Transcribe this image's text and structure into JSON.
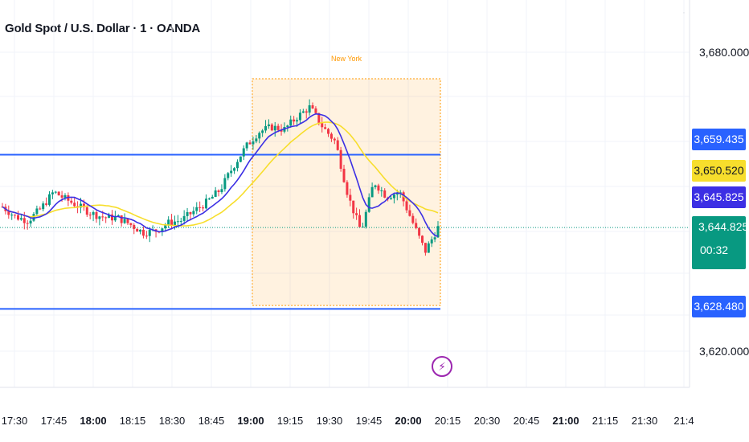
{
  "header": {
    "title": "Gold Spot / U.S. Dollar · 1 · OANDA"
  },
  "chart_data": {
    "type": "candlestick",
    "title": "Gold Spot / U.S. Dollar · 1 · OANDA",
    "ylim": [
      3612.5,
      3686.0
    ],
    "y_ticks": [
      "3,680.000",
      "3,620.000"
    ],
    "x_ticks": [
      "17:30",
      "17:45",
      "18:00",
      "18:15",
      "18:30",
      "18:45",
      "19:00",
      "19:15",
      "19:30",
      "19:45",
      "20:00",
      "20:15",
      "20:30",
      "20:45",
      "21:00",
      "21:15",
      "21:30",
      "21:4"
    ],
    "x_ticks_bold": [
      "18:00",
      "19:00",
      "20:00",
      "21:00"
    ],
    "session_label": "New York",
    "horizontal_lines": [
      {
        "value": 3659.435,
        "color": "#2962ff"
      },
      {
        "value": 3628.48,
        "color": "#2962ff"
      }
    ],
    "price_labels": {
      "upper_line": "3,659.435",
      "ema": "3,650.520",
      "sma": "3,645.825",
      "current": "3,644.825",
      "countdown": "00:32",
      "lower_line": "3,628.480"
    },
    "colors": {
      "up": "#089981",
      "down": "#f23645",
      "ema": "#f7de2c",
      "sma": "#3c2fe4",
      "session": "#ff9800"
    },
    "close_path": [
      3649.0,
      3647.0,
      3646.2,
      3648.6,
      3652.0,
      3650.4,
      3649.0,
      3647.6,
      3646.8,
      3646.8,
      3645.4,
      3643.8,
      3644.2,
      3645.8,
      3646.3,
      3648.2,
      3650.0,
      3652.4,
      3657.0,
      3661.0,
      3664.0,
      3665.0,
      3664.5,
      3667.0,
      3669.0,
      3665.0,
      3662.0,
      3651.0,
      3644.0,
      3654.0,
      3651.0,
      3652.0,
      3646.0,
      3640.0,
      3644.8
    ]
  }
}
